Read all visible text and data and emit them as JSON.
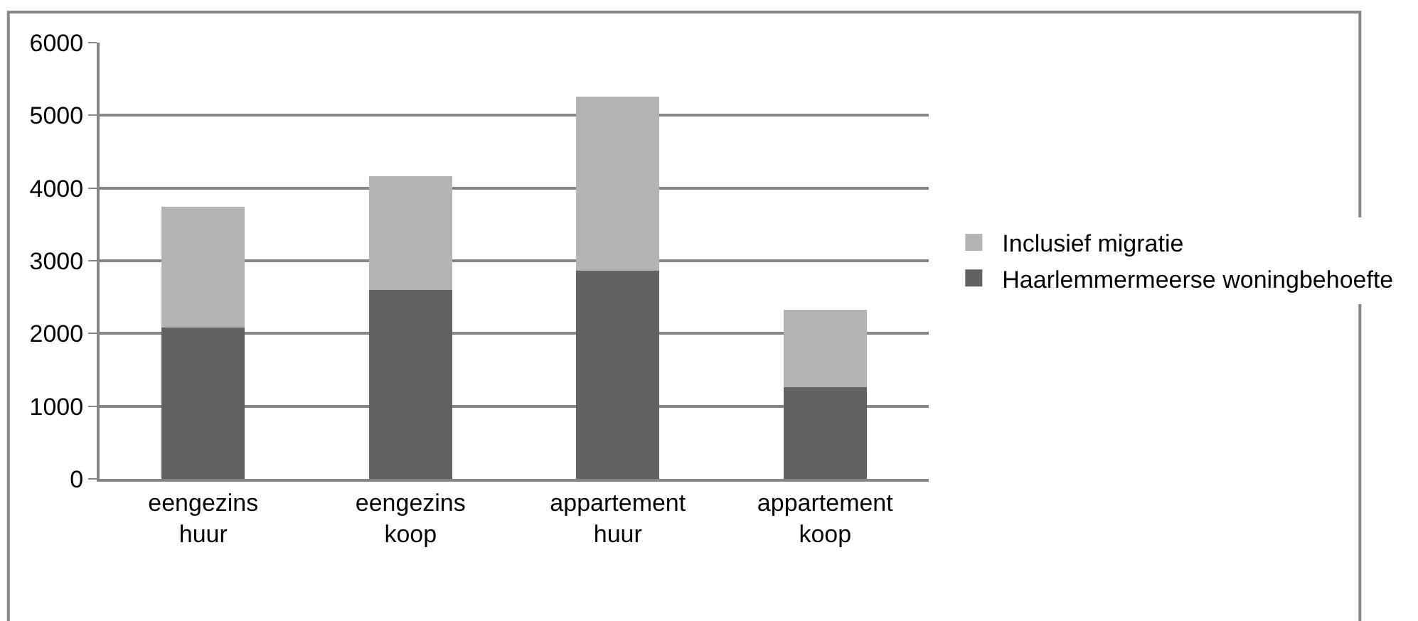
{
  "chart_data": {
    "type": "bar",
    "stacked": true,
    "categories": [
      "eengezins\nhuur",
      "eengezins\nkoop",
      "appartement\nhuur",
      "appartement\nkoop"
    ],
    "series": [
      {
        "name": "Haarlemmermeerse woningbehoefte",
        "color": "#626262",
        "values": [
          2080,
          2600,
          2860,
          1260
        ]
      },
      {
        "name": "Inclusief migratie",
        "color": "#b3b3b3",
        "values": [
          1660,
          1560,
          2400,
          1070
        ]
      }
    ],
    "ylim": [
      0,
      6000
    ],
    "yticks": [
      0,
      1000,
      2000,
      3000,
      4000,
      5000,
      6000
    ],
    "grid": "y",
    "legend": "right"
  }
}
